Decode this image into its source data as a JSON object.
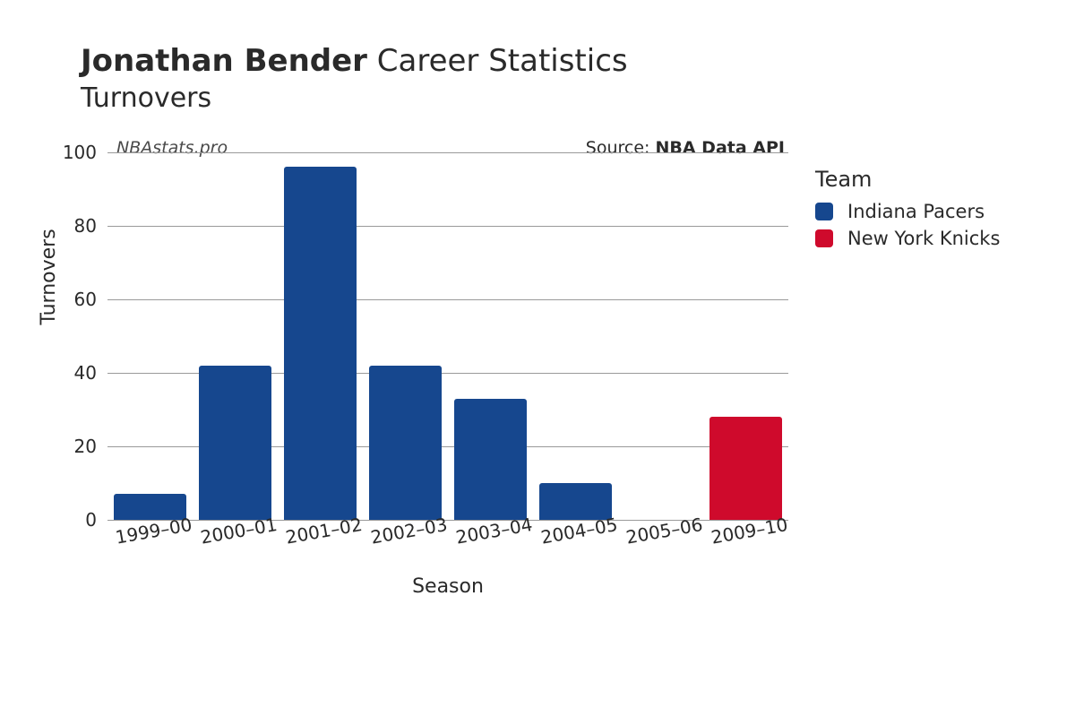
{
  "title": {
    "player": "Jonathan Bender",
    "suffix": "Career Statistics",
    "subtitle": "Turnovers"
  },
  "watermark": "NBAstats.pro",
  "source_label": "Source: ",
  "source_value": "NBA Data API",
  "chart": {
    "type": "bar",
    "ylabel": "Turnovers",
    "xlabel": "Season",
    "ylim": [
      0,
      100
    ],
    "ytick_step": 20,
    "grid_color": "#9a9a9a",
    "background_color": "#ffffff",
    "bar_width": 0.85,
    "tick_fontsize": 20,
    "label_fontsize": 22,
    "xtick_rotation": -10,
    "categories": [
      "1999–00",
      "2000–01",
      "2001–02",
      "2002–03",
      "2003–04",
      "2004–05",
      "2005–06",
      "2009–10"
    ],
    "values": [
      7,
      42,
      96,
      42,
      33,
      10,
      0,
      28
    ],
    "bar_colors": [
      "#16478e",
      "#16478e",
      "#16478e",
      "#16478e",
      "#16478e",
      "#16478e",
      "#16478e",
      "#cf0a2c"
    ]
  },
  "yticks": [
    {
      "v": 0,
      "label": "0"
    },
    {
      "v": 20,
      "label": "20"
    },
    {
      "v": 40,
      "label": "40"
    },
    {
      "v": 60,
      "label": "60"
    },
    {
      "v": 80,
      "label": "80"
    },
    {
      "v": 100,
      "label": "100"
    }
  ],
  "legend": {
    "title": "Team",
    "items": [
      {
        "label": "Indiana Pacers",
        "color": "#16478e"
      },
      {
        "label": "New York Knicks",
        "color": "#cf0a2c"
      }
    ]
  }
}
